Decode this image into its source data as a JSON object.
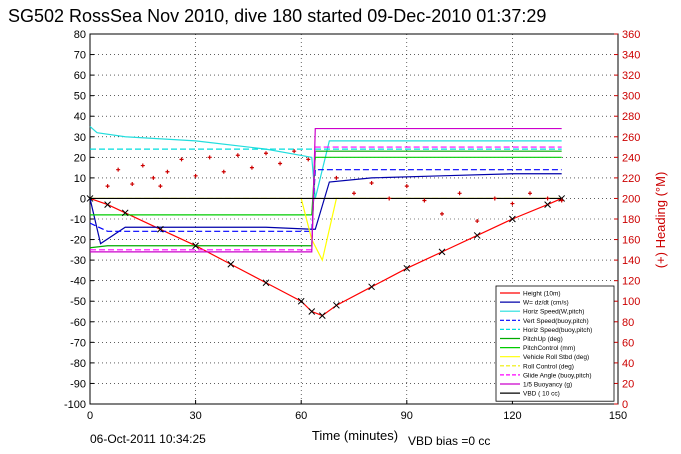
{
  "title": "SG502 RossSea Nov 2010, dive 180 started 09-Dec-2010 01:37:29",
  "footer": {
    "date": "06-Oct-2011 10:34:25",
    "vbd_bias": "VBD bias =0 cc"
  },
  "colors": {
    "height": "#ff0000",
    "w": "#0000aa",
    "horiz_speed": "#22dddd",
    "vert_speed_buoy": "#0000ff",
    "horiz_speed_buoy": "#00dddd",
    "pitch_up": "#00aa00",
    "pitch_control": "#00cc00",
    "vehicle_roll": "#ffff00",
    "roll_control": "#eeee00",
    "glide_angle": "#ff00ff",
    "buoyancy": "#cc00cc",
    "vbd": "#000000",
    "heading": "#cc0000"
  },
  "chart_data": {
    "type": "line",
    "xlabel": "Time (minutes)",
    "ylabel_right": "(+) Heading (°M)",
    "xlim": [
      0,
      150
    ],
    "ylim_left": [
      -100,
      80
    ],
    "ylim_right": [
      0,
      360
    ],
    "xticks": [
      0,
      30,
      60,
      90,
      120,
      150
    ],
    "yticks_left": [
      -100,
      -90,
      -80,
      -70,
      -60,
      -50,
      -40,
      -30,
      -20,
      -10,
      0,
      10,
      20,
      30,
      40,
      50,
      60,
      70,
      80
    ],
    "yticks_right": [
      0,
      20,
      40,
      60,
      80,
      100,
      120,
      140,
      160,
      180,
      200,
      220,
      240,
      260,
      280,
      300,
      320,
      340,
      360
    ],
    "grid": true,
    "legend_position": "bottom-right",
    "legend": [
      "Height (10m)",
      "W= dz/dt (cm/s)",
      "Horiz Speed(W,pitch)",
      "Vert Speed(buoy,pitch)",
      "Horiz Speed(buoy,pitch)",
      "PitchUp (deg)",
      "PitchControl (mm)",
      "Vehicle Roll Stbd (deg)",
      "Roll Control (deg)",
      "Glide Angle (buoy,pitch)",
      "1/5 Buoyancy (g)",
      "VBD ( 10 cc)"
    ],
    "series": [
      {
        "name": "Height (10m)",
        "x": [
          0,
          5,
          10,
          20,
          30,
          40,
          50,
          60,
          63,
          66,
          70,
          80,
          90,
          100,
          110,
          120,
          130,
          134
        ],
        "y": [
          0,
          -3,
          -7,
          -15,
          -23,
          -32,
          -41,
          -50,
          -55,
          -57,
          -52,
          -43,
          -34,
          -26,
          -18,
          -10,
          -3,
          0
        ]
      },
      {
        "name": "W= dz/dt (cm/s)",
        "x": [
          0,
          3,
          10,
          30,
          50,
          63,
          64,
          68,
          80,
          100,
          120,
          134
        ],
        "y": [
          0,
          -22,
          -14,
          -14,
          -14,
          -15,
          -15,
          8,
          10,
          11,
          12,
          12
        ]
      },
      {
        "name": "Horiz Speed(W,pitch)",
        "x": [
          0,
          2,
          10,
          30,
          50,
          63,
          64,
          68,
          80,
          100,
          120,
          134
        ],
        "y": [
          35,
          32,
          30,
          28,
          24,
          20,
          0,
          28,
          28,
          28,
          28,
          28
        ]
      },
      {
        "name": "Vert Speed(buoy,pitch)",
        "x": [
          0,
          5,
          60,
          63,
          64,
          134
        ],
        "y": [
          -12,
          -16,
          -16,
          -16,
          14,
          14
        ]
      },
      {
        "name": "Horiz Speed(buoy,pitch)",
        "x": [
          0,
          5,
          60,
          63,
          64,
          134
        ],
        "y": [
          24,
          24,
          24,
          24,
          24,
          24
        ]
      },
      {
        "name": "PitchUp (deg)",
        "x": [
          0,
          5,
          60,
          63,
          64,
          134
        ],
        "y": [
          -24,
          -23,
          -23,
          -23,
          23,
          23
        ]
      },
      {
        "name": "PitchControl (mm)",
        "x": [
          0,
          5,
          60,
          63,
          64,
          134
        ],
        "y": [
          -8,
          -8,
          -8,
          -8,
          20,
          20
        ]
      },
      {
        "name": "Vehicle Roll Stbd (deg)",
        "x": [
          0,
          10,
          20,
          30,
          40,
          50,
          60,
          63,
          66,
          70,
          80,
          90,
          100,
          110,
          120,
          134
        ],
        "y": [
          0,
          0,
          0,
          0,
          0,
          0,
          0,
          -20,
          -30,
          0,
          0,
          0,
          0,
          0,
          0,
          0
        ]
      },
      {
        "name": "Roll Control (deg)",
        "x": [
          0,
          63,
          64,
          134
        ],
        "y": [
          0,
          0,
          0,
          0
        ]
      },
      {
        "name": "Glide Angle (buoy,pitch)",
        "x": [
          0,
          5,
          60,
          63,
          64,
          134
        ],
        "y": [
          -25,
          -25,
          -25,
          -25,
          25,
          25
        ]
      },
      {
        "name": "1/5 Buoyancy (g)",
        "x": [
          0,
          5,
          63,
          64,
          134
        ],
        "y": [
          -26,
          -26,
          -26,
          34,
          34
        ]
      },
      {
        "name": "VBD ( 10 cc)",
        "x": [
          0,
          134
        ],
        "y": [
          0,
          0
        ]
      }
    ],
    "heading": {
      "axis": "right",
      "x": [
        5,
        8,
        12,
        15,
        18,
        20,
        22,
        26,
        30,
        34,
        38,
        42,
        46,
        50,
        54,
        58,
        62,
        70,
        75,
        80,
        85,
        90,
        95,
        100,
        105,
        110,
        115,
        120,
        125,
        130,
        134
      ],
      "y": [
        212,
        228,
        214,
        232,
        220,
        212,
        226,
        238,
        222,
        240,
        226,
        242,
        230,
        244,
        234,
        246,
        238,
        220,
        205,
        215,
        200,
        212,
        198,
        185,
        205,
        178,
        200,
        195,
        205,
        200,
        198
      ]
    }
  }
}
